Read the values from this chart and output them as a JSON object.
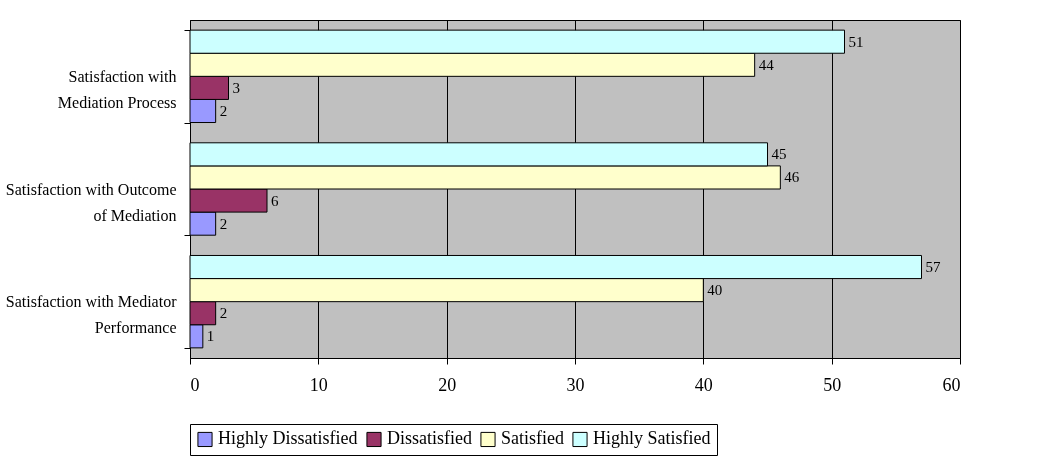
{
  "chart_data": {
    "type": "bar",
    "orientation": "horizontal",
    "categories": [
      "Satisfaction with Mediation Process",
      "Satisfaction with Outcome of Mediation",
      "Satisfaction with Mediator Performance"
    ],
    "series": [
      {
        "name": "Highly Dissatisfied",
        "color": "#9999ff",
        "values": [
          2,
          2,
          1
        ]
      },
      {
        "name": "Dissatisfied",
        "color": "#993366",
        "values": [
          3,
          6,
          2
        ]
      },
      {
        "name": "Satisfied",
        "color": "#ffffcc",
        "values": [
          44,
          46,
          40
        ]
      },
      {
        "name": "Highly Satisfied",
        "color": "#ccffff",
        "values": [
          51,
          45,
          57
        ]
      }
    ],
    "xlim": [
      0,
      60
    ],
    "xticks": [
      0,
      10,
      20,
      30,
      40,
      50,
      60
    ],
    "grid": "x",
    "legend": "bottom",
    "data_labels": true
  }
}
